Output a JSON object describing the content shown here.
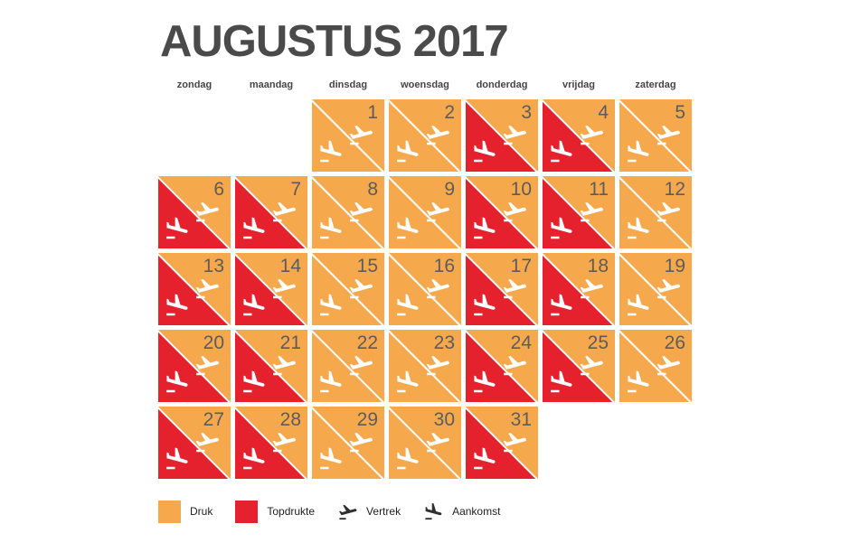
{
  "title": "AUGUSTUS 2017",
  "weekdays": [
    "zondag",
    "maandag",
    "dinsdag",
    "woensdag",
    "donderdag",
    "vrijdag",
    "zaterdag"
  ],
  "colors": {
    "druk": "#F6A94C",
    "topdrukte": "#E5212E",
    "title_text": "#4A4A4B",
    "day_number": "#5B5C5E",
    "legend_text": "#232021",
    "background": "#FFFFFF"
  },
  "calendar": {
    "month": "Augustus",
    "year": "2017",
    "first_day_column": 2,
    "days": [
      {
        "number": "1",
        "departure": "druk",
        "arrival": "druk"
      },
      {
        "number": "2",
        "departure": "druk",
        "arrival": "druk"
      },
      {
        "number": "3",
        "departure": "druk",
        "arrival": "topdrukte"
      },
      {
        "number": "4",
        "departure": "druk",
        "arrival": "topdrukte"
      },
      {
        "number": "5",
        "departure": "druk",
        "arrival": "druk"
      },
      {
        "number": "6",
        "departure": "druk",
        "arrival": "topdrukte"
      },
      {
        "number": "7",
        "departure": "druk",
        "arrival": "topdrukte"
      },
      {
        "number": "8",
        "departure": "druk",
        "arrival": "druk"
      },
      {
        "number": "9",
        "departure": "druk",
        "arrival": "druk"
      },
      {
        "number": "10",
        "departure": "druk",
        "arrival": "topdrukte"
      },
      {
        "number": "11",
        "departure": "druk",
        "arrival": "topdrukte"
      },
      {
        "number": "12",
        "departure": "druk",
        "arrival": "druk"
      },
      {
        "number": "13",
        "departure": "druk",
        "arrival": "topdrukte"
      },
      {
        "number": "14",
        "departure": "druk",
        "arrival": "topdrukte"
      },
      {
        "number": "15",
        "departure": "druk",
        "arrival": "druk"
      },
      {
        "number": "16",
        "departure": "druk",
        "arrival": "druk"
      },
      {
        "number": "17",
        "departure": "druk",
        "arrival": "topdrukte"
      },
      {
        "number": "18",
        "departure": "druk",
        "arrival": "topdrukte"
      },
      {
        "number": "19",
        "departure": "druk",
        "arrival": "druk"
      },
      {
        "number": "20",
        "departure": "druk",
        "arrival": "topdrukte"
      },
      {
        "number": "21",
        "departure": "druk",
        "arrival": "topdrukte"
      },
      {
        "number": "22",
        "departure": "druk",
        "arrival": "druk"
      },
      {
        "number": "23",
        "departure": "druk",
        "arrival": "druk"
      },
      {
        "number": "24",
        "departure": "druk",
        "arrival": "topdrukte"
      },
      {
        "number": "25",
        "departure": "druk",
        "arrival": "topdrukte"
      },
      {
        "number": "26",
        "departure": "druk",
        "arrival": "druk"
      },
      {
        "number": "27",
        "departure": "druk",
        "arrival": "topdrukte"
      },
      {
        "number": "28",
        "departure": "druk",
        "arrival": "topdrukte"
      },
      {
        "number": "29",
        "departure": "druk",
        "arrival": "druk"
      },
      {
        "number": "30",
        "departure": "druk",
        "arrival": "druk"
      },
      {
        "number": "31",
        "departure": "druk",
        "arrival": "topdrukte"
      }
    ]
  },
  "legend": {
    "items": [
      {
        "kind": "color",
        "color_key": "druk",
        "label": "Druk"
      },
      {
        "kind": "color",
        "color_key": "topdrukte",
        "label": "Topdrukte"
      },
      {
        "kind": "icon",
        "icon": "flight-takeoff-icon",
        "label": "Vertrek"
      },
      {
        "kind": "icon",
        "icon": "flight-land-icon",
        "label": "Aankomst"
      }
    ]
  },
  "chart_data": {
    "type": "heatmap",
    "title": "AUGUSTUS 2017",
    "description": "Calendar heatmap of airport crowd levels per day, split per day into Vertrek (departure, upper-right triangle) and Aankomst (arrival, lower-left triangle)",
    "weekday_columns": [
      "zondag",
      "maandag",
      "dinsdag",
      "woensdag",
      "donderdag",
      "vrijdag",
      "zaterdag"
    ],
    "categories": [
      "1",
      "2",
      "3",
      "4",
      "5",
      "6",
      "7",
      "8",
      "9",
      "10",
      "11",
      "12",
      "13",
      "14",
      "15",
      "16",
      "17",
      "18",
      "19",
      "20",
      "21",
      "22",
      "23",
      "24",
      "25",
      "26",
      "27",
      "28",
      "29",
      "30",
      "31"
    ],
    "series": [
      {
        "name": "Vertrek",
        "values": [
          "Druk",
          "Druk",
          "Druk",
          "Druk",
          "Druk",
          "Druk",
          "Druk",
          "Druk",
          "Druk",
          "Druk",
          "Druk",
          "Druk",
          "Druk",
          "Druk",
          "Druk",
          "Druk",
          "Druk",
          "Druk",
          "Druk",
          "Druk",
          "Druk",
          "Druk",
          "Druk",
          "Druk",
          "Druk",
          "Druk",
          "Druk",
          "Druk",
          "Druk",
          "Druk",
          "Druk"
        ]
      },
      {
        "name": "Aankomst",
        "values": [
          "Druk",
          "Druk",
          "Topdrukte",
          "Topdrukte",
          "Druk",
          "Topdrukte",
          "Topdrukte",
          "Druk",
          "Druk",
          "Topdrukte",
          "Topdrukte",
          "Druk",
          "Topdrukte",
          "Topdrukte",
          "Druk",
          "Druk",
          "Topdrukte",
          "Topdrukte",
          "Druk",
          "Topdrukte",
          "Topdrukte",
          "Druk",
          "Druk",
          "Topdrukte",
          "Topdrukte",
          "Druk",
          "Topdrukte",
          "Topdrukte",
          "Druk",
          "Druk",
          "Topdrukte"
        ]
      }
    ],
    "value_scale": {
      "Druk": "#F6A94C",
      "Topdrukte": "#E5212E"
    },
    "legend_position": "bottom"
  }
}
